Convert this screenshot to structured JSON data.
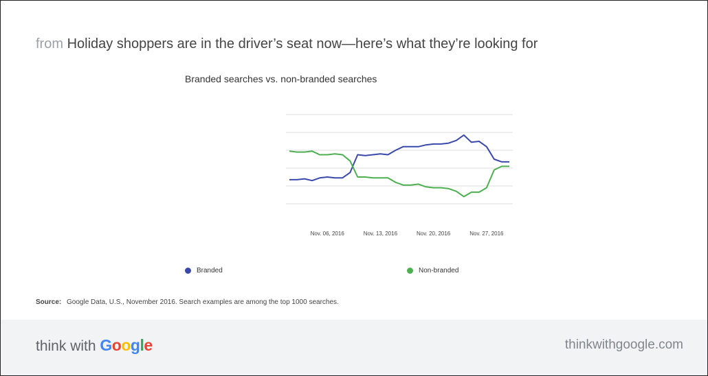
{
  "header": {
    "prefix": "from",
    "headline": "Holiday shoppers are in the driver’s seat now—here’s what they’re looking for"
  },
  "legend": {
    "branded": "Branded",
    "non_branded": "Non-branded"
  },
  "source": {
    "label": "Source:",
    "text": "Google Data, U.S., November 2016. Search examples are among the top 1000 searches."
  },
  "footer": {
    "brand_prefix": "think with",
    "brand_google_letters": [
      "G",
      "o",
      "o",
      "g",
      "l",
      "e"
    ],
    "url": "thinkwithgoogle.com"
  },
  "colors": {
    "branded": "#3949ab",
    "non_branded": "#4caf50",
    "gridline": "#dddddd",
    "google_blue": "#4285f4",
    "google_red": "#ea4335",
    "google_yellow": "#fbbc05",
    "google_green": "#34a853"
  },
  "chart_data": {
    "type": "line",
    "title": "Branded searches vs. non-branded searches",
    "xlabel": "",
    "ylabel": "",
    "x_ticks": [
      "Nov. 06, 2016",
      "Nov. 13, 2016",
      "Nov. 20, 2016",
      "Nov. 27, 2016"
    ],
    "x": [
      "Nov. 01, 2016",
      "Nov. 02, 2016",
      "Nov. 03, 2016",
      "Nov. 04, 2016",
      "Nov. 05, 2016",
      "Nov. 06, 2016",
      "Nov. 07, 2016",
      "Nov. 08, 2016",
      "Nov. 09, 2016",
      "Nov. 10, 2016",
      "Nov. 11, 2016",
      "Nov. 12, 2016",
      "Nov. 13, 2016",
      "Nov. 14, 2016",
      "Nov. 15, 2016",
      "Nov. 16, 2016",
      "Nov. 17, 2016",
      "Nov. 18, 2016",
      "Nov. 19, 2016",
      "Nov. 20, 2016",
      "Nov. 21, 2016",
      "Nov. 22, 2016",
      "Nov. 23, 2016",
      "Nov. 24, 2016",
      "Nov. 25, 2016",
      "Nov. 26, 2016",
      "Nov. 27, 2016",
      "Nov. 28, 2016",
      "Nov. 29, 2016",
      "Nov. 30, 2016"
    ],
    "series": [
      {
        "name": "Branded",
        "color": "#3949ab",
        "values": [
          1.44,
          1.44,
          1.46,
          1.42,
          1.48,
          1.5,
          1.48,
          1.48,
          1.6,
          2.0,
          1.98,
          2.0,
          2.02,
          2.0,
          2.1,
          2.18,
          2.18,
          2.18,
          2.22,
          2.24,
          2.24,
          2.26,
          2.32,
          2.44,
          2.28,
          2.3,
          2.18,
          1.9,
          1.84,
          1.84
        ]
      },
      {
        "name": "Non-branded",
        "color": "#4caf50",
        "values": [
          2.08,
          2.06,
          2.06,
          2.08,
          2.0,
          2.0,
          2.02,
          2.0,
          1.86,
          1.5,
          1.5,
          1.48,
          1.48,
          1.48,
          1.38,
          1.32,
          1.32,
          1.34,
          1.28,
          1.26,
          1.26,
          1.24,
          1.18,
          1.06,
          1.16,
          1.16,
          1.26,
          1.66,
          1.74,
          1.74
        ]
      }
    ],
    "ylim": [
      0.5,
      2.9
    ],
    "y_gridlines": [
      0.9,
      1.3,
      1.7,
      2.1,
      2.5,
      2.9
    ],
    "grid": true,
    "legend_position": "bottom"
  }
}
